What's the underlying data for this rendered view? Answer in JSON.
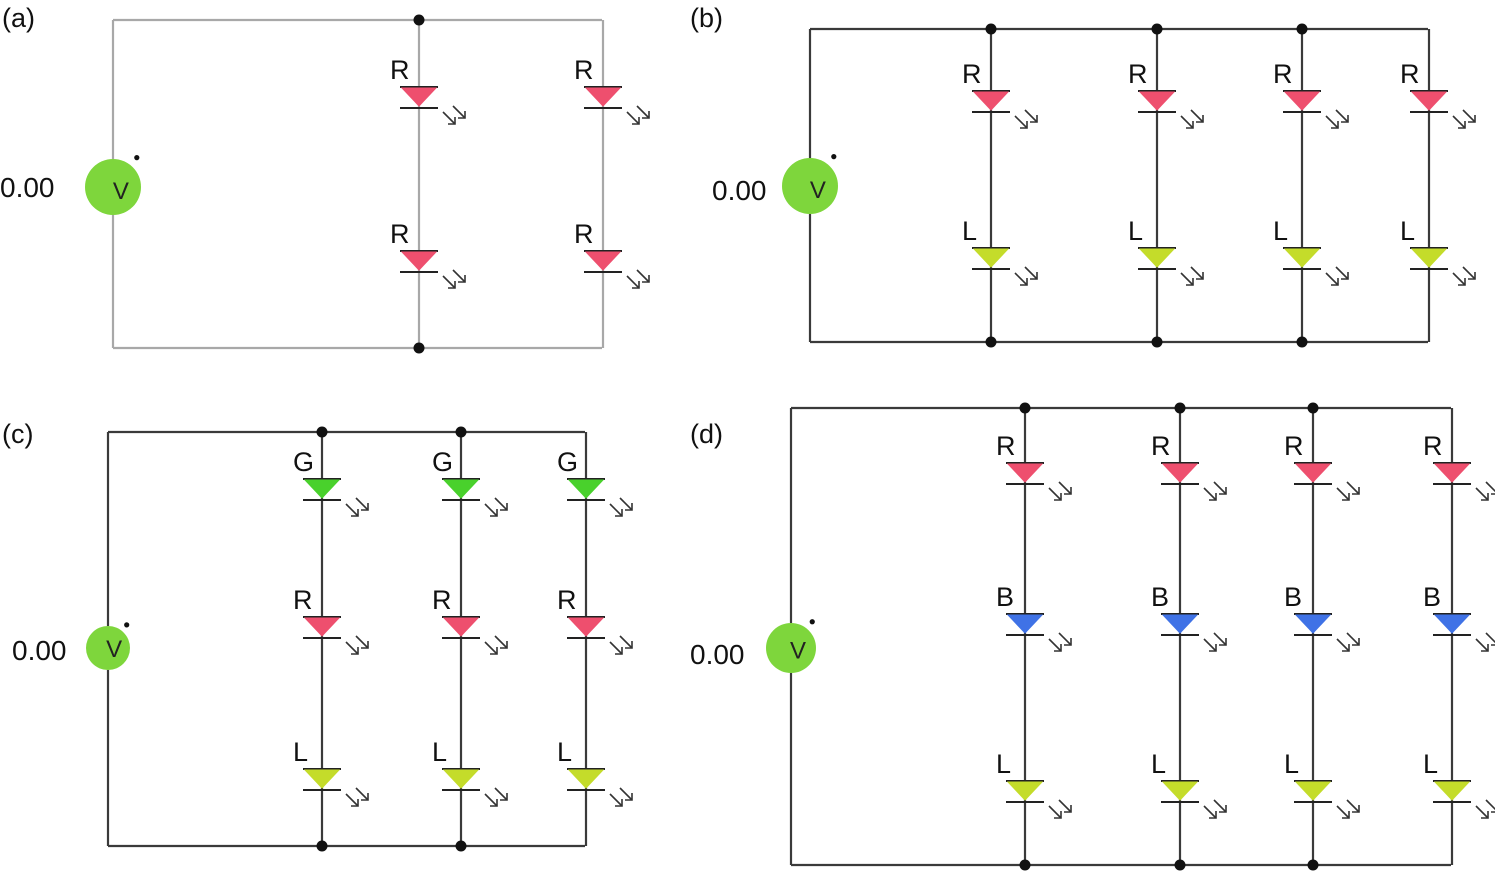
{
  "colors": {
    "wire_a": "#a8a8a8",
    "wire_bcd": "#3a3a3a",
    "source_fill": "#7ed63c",
    "led_R": "#ee4f6e",
    "led_L": "#c4dc2a",
    "led_G": "#49d12c",
    "led_B": "#3f72e6",
    "node": "#111111"
  },
  "source_letter": "V",
  "panels": [
    {
      "id": "a",
      "label": "(a)",
      "voltage": "0.00",
      "columns": [
        {
          "leds": [
            "R",
            "R"
          ]
        },
        {
          "leds": [
            "R",
            "R"
          ]
        }
      ]
    },
    {
      "id": "b",
      "label": "(b)",
      "voltage": "0.00",
      "columns": [
        {
          "leds": [
            "R",
            "L"
          ]
        },
        {
          "leds": [
            "R",
            "L"
          ]
        },
        {
          "leds": [
            "R",
            "L"
          ]
        },
        {
          "leds": [
            "R",
            "L"
          ]
        }
      ]
    },
    {
      "id": "c",
      "label": "(c)",
      "voltage": "0.00",
      "columns": [
        {
          "leds": [
            "G",
            "R",
            "L"
          ]
        },
        {
          "leds": [
            "G",
            "R",
            "L"
          ]
        },
        {
          "leds": [
            "G",
            "R",
            "L"
          ]
        }
      ]
    },
    {
      "id": "d",
      "label": "(d)",
      "voltage": "0.00",
      "columns": [
        {
          "leds": [
            "R",
            "B",
            "L"
          ]
        },
        {
          "leds": [
            "R",
            "B",
            "L"
          ]
        },
        {
          "leds": [
            "R",
            "B",
            "L"
          ]
        },
        {
          "leds": [
            "R",
            "B",
            "L"
          ]
        }
      ]
    }
  ]
}
